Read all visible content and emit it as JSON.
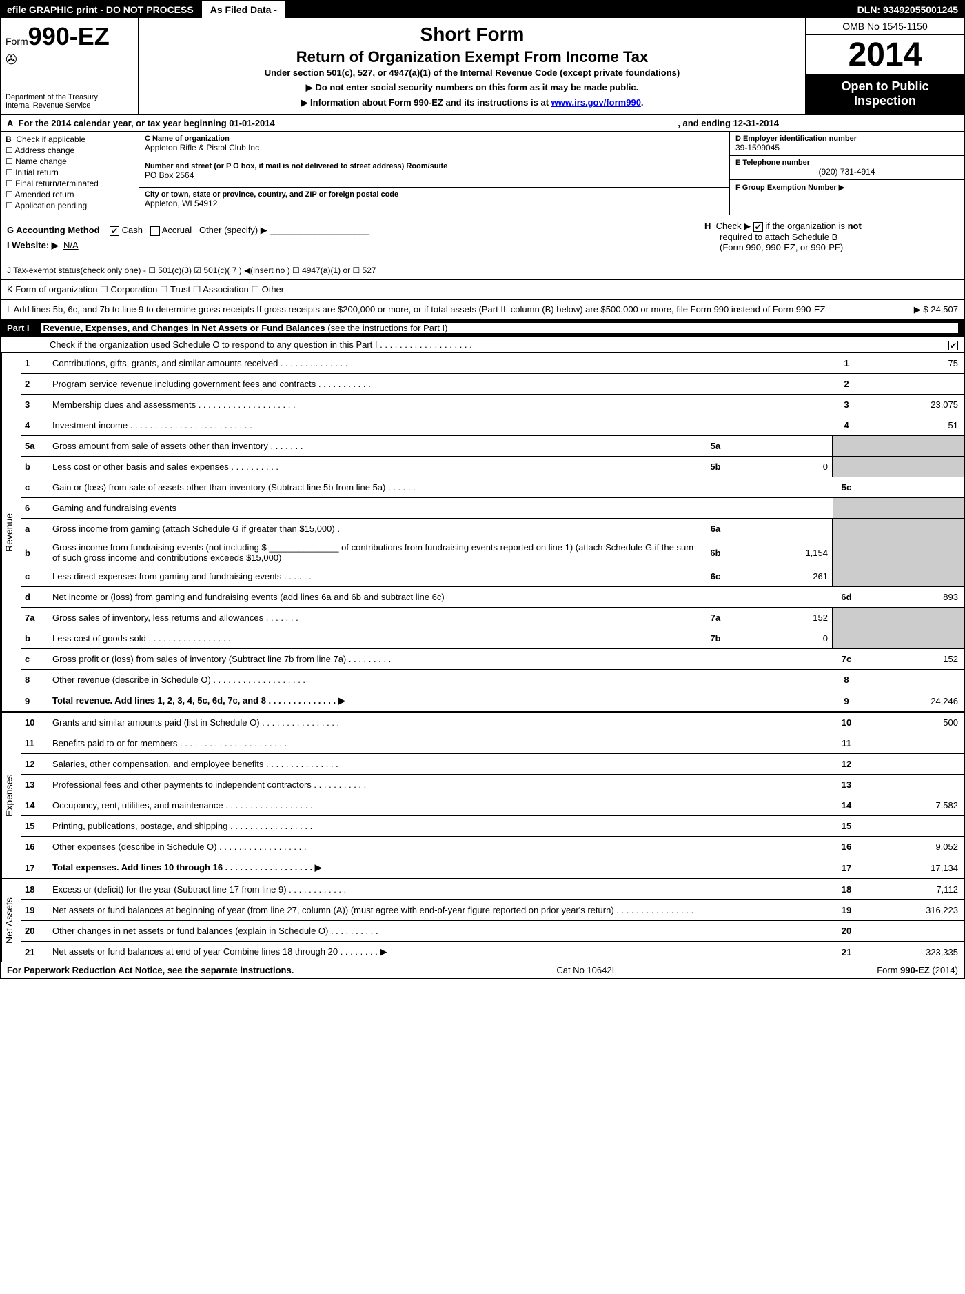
{
  "topbar": {
    "left": "efile GRAPHIC print - DO NOT PROCESS",
    "mid": "As Filed Data -",
    "dln": "DLN: 93492055001245"
  },
  "header": {
    "form_prefix": "Form",
    "form_num": "990-EZ",
    "dept1": "Department of the Treasury",
    "dept2": "Internal Revenue Service",
    "short_form": "Short Form",
    "title": "Return of Organization Exempt From Income Tax",
    "subtitle": "Under section 501(c), 527, or 4947(a)(1) of the Internal Revenue Code (except private foundations)",
    "warn1": "▶ Do not enter social security numbers on this form as it may be made public.",
    "warn2_pre": "▶ Information about Form 990-EZ and its instructions is at ",
    "warn2_link": "www.irs.gov/form990",
    "warn2_post": ".",
    "omb": "OMB No 1545-1150",
    "year": "2014",
    "inspect1": "Open to Public",
    "inspect2": "Inspection"
  },
  "row_a": {
    "label": "A",
    "text": "For the 2014 calendar year, or tax year beginning 01-01-2014",
    "end": ", and ending 12-31-2014"
  },
  "col_b": {
    "label": "B",
    "check": "Check if applicable",
    "items": [
      "Address change",
      "Name change",
      "Initial return",
      "Final return/terminated",
      "Amended return",
      "Application pending"
    ]
  },
  "col_c": {
    "name_lbl": "C Name of organization",
    "name": "Appleton Rifle & Pistol Club Inc",
    "street_lbl": "Number and street (or P O box, if mail is not delivered to street address) Room/suite",
    "street": "PO Box 2564",
    "city_lbl": "City or town, state or province, country, and ZIP or foreign postal code",
    "city": "Appleton, WI  54912"
  },
  "col_def": {
    "d_lbl": "D Employer identification number",
    "d_val": "39-1599045",
    "e_lbl": "E Telephone number",
    "e_val": "(920) 731-4914",
    "f_lbl": "F Group Exemption Number    ▶"
  },
  "gh": {
    "g": "G Accounting Method",
    "g_cash": "Cash",
    "g_accrual": "Accrual",
    "g_other": "Other (specify) ▶",
    "i": "I Website: ▶",
    "i_val": "N/A",
    "h1": "H",
    "h2": "Check ▶",
    "h3": "if the organization is",
    "h3b": "not",
    "h4": "required to attach Schedule B",
    "h5": "(Form 990, 990-EZ, or 990-PF)"
  },
  "row_j": "J Tax-exempt status(check only one) -  ☐ 501(c)(3)  ☑ 501(c)( 7 ) ◀(insert no )  ☐ 4947(a)(1) or  ☐ 527",
  "row_k": "K Form of organization   ☐ Corporation  ☐ Trust  ☐ Association  ☐ Other",
  "row_l": {
    "text": "L Add lines 5b, 6c, and 7b to line 9 to determine gross receipts If gross receipts are $200,000 or more, or if total assets (Part II, column (B) below) are $500,000 or more, file Form 990 instead of Form 990-EZ",
    "amt": "▶ $ 24,507"
  },
  "part1": {
    "num": "Part I",
    "title": "Revenue, Expenses, and Changes in Net Assets or Fund Balances",
    "note": "(see the instructions for Part I)",
    "sched_o": "Check if the organization used Schedule O to respond to any question in this Part I  .  .  .  .  .  .  .  .  .  .  .  .  .  .  .  .  .  .  ."
  },
  "sections": {
    "revenue": "Revenue",
    "expenses": "Expenses",
    "netassets": "Net Assets"
  },
  "lines": {
    "l1": {
      "n": "1",
      "d": "Contributions, gifts, grants, and similar amounts received    .   .   .   .   .   .   .   .   .   .   .   .   .   .",
      "rn": "1",
      "rv": "75"
    },
    "l2": {
      "n": "2",
      "d": "Program service revenue including government fees and contracts    .   .   .   .   .   .   .   .   .   .   .",
      "rn": "2",
      "rv": ""
    },
    "l3": {
      "n": "3",
      "d": "Membership dues and assessments    .   .   .   .   .   .   .   .   .   .   .   .   .   .   .   .   .   .   .   .",
      "rn": "3",
      "rv": "23,075"
    },
    "l4": {
      "n": "4",
      "d": "Investment income    .   .   .   .   .   .   .   .   .   .   .   .   .   .   .   .   .   .   .   .   .   .   .   .   .",
      "rn": "4",
      "rv": "51"
    },
    "l5a": {
      "n": "5a",
      "d": "Gross amount from sale of assets other than inventory    .   .   .   .   .   .   .",
      "sn": "5a",
      "sv": ""
    },
    "l5b": {
      "n": "b",
      "d": "Less  cost or other basis and sales expenses    .   .   .   .   .   .   .   .   .   .",
      "sn": "5b",
      "sv": "0"
    },
    "l5c": {
      "n": "c",
      "d": "Gain or (loss) from sale of assets other than inventory (Subtract line 5b from line 5a)   .   .   .   .   .   .",
      "rn": "5c",
      "rv": ""
    },
    "l6": {
      "n": "6",
      "d": "Gaming and fundraising events"
    },
    "l6a": {
      "n": "a",
      "d": "Gross income from gaming (attach Schedule G if greater than $15,000)    .",
      "sn": "6a",
      "sv": ""
    },
    "l6b": {
      "n": "b",
      "d": "Gross income from fundraising events (not including $ ______________ of contributions from fundraising events reported on line 1) (attach Schedule G if the sum of such gross income and contributions exceeds $15,000)",
      "sn": "6b",
      "sv": "1,154"
    },
    "l6c": {
      "n": "c",
      "d": "Less  direct expenses from gaming and fundraising events   .   .   .   .   .   .",
      "sn": "6c",
      "sv": "261"
    },
    "l6d": {
      "n": "d",
      "d": "Net income or (loss) from gaming and fundraising events (add lines 6a and 6b and subtract line 6c)",
      "rn": "6d",
      "rv": "893"
    },
    "l7a": {
      "n": "7a",
      "d": "Gross sales of inventory, less returns and allowances   .   .   .   .   .   .   .",
      "sn": "7a",
      "sv": "152"
    },
    "l7b": {
      "n": "b",
      "d": "Less  cost of goods sold   .   .   .   .   .   .   .   .   .   .   .   .   .   .   .   .   .",
      "sn": "7b",
      "sv": "0"
    },
    "l7c": {
      "n": "c",
      "d": "Gross profit or (loss) from sales of inventory (Subtract line 7b from line 7a)   .   .   .   .   .   .   .   .   .",
      "rn": "7c",
      "rv": "152"
    },
    "l8": {
      "n": "8",
      "d": "Other revenue (describe in Schedule O)   .   .   .   .   .   .   .   .   .   .   .   .   .   .   .   .   .   .   .",
      "rn": "8",
      "rv": ""
    },
    "l9": {
      "n": "9",
      "d": "Total revenue. Add lines 1, 2, 3, 4, 5c, 6d, 7c, and 8   .   .   .   .   .   .   .   .   .   .   .   .   .   .   ▶",
      "rn": "9",
      "rv": "24,246",
      "bold": true
    },
    "l10": {
      "n": "10",
      "d": "Grants and similar amounts paid (list in Schedule O)   .   .   .   .   .   .   .   .   .   .   .   .   .   .   .   .",
      "rn": "10",
      "rv": "500"
    },
    "l11": {
      "n": "11",
      "d": "Benefits paid to or for members   .   .   .   .   .   .   .   .   .   .   .   .   .   .   .   .   .   .   .   .   .   .",
      "rn": "11",
      "rv": ""
    },
    "l12": {
      "n": "12",
      "d": "Salaries, other compensation, and employee benefits   .   .   .   .   .   .   .   .   .   .   .   .   .   .   .",
      "rn": "12",
      "rv": ""
    },
    "l13": {
      "n": "13",
      "d": "Professional fees and other payments to independent contractors   .   .   .   .   .   .   .   .   .   .   .",
      "rn": "13",
      "rv": ""
    },
    "l14": {
      "n": "14",
      "d": "Occupancy, rent, utilities, and maintenance   .   .   .   .   .   .   .   .   .   .   .   .   .   .   .   .   .   .",
      "rn": "14",
      "rv": "7,582"
    },
    "l15": {
      "n": "15",
      "d": "Printing, publications, postage, and shipping   .   .   .   .   .   .   .   .   .   .   .   .   .   .   .   .   .",
      "rn": "15",
      "rv": ""
    },
    "l16": {
      "n": "16",
      "d": "Other expenses (describe in Schedule O)   .   .   .   .   .   .   .   .   .   .   .   .   .   .   .   .   .   .",
      "rn": "16",
      "rv": "9,052"
    },
    "l17": {
      "n": "17",
      "d": "Total expenses. Add lines 10 through 16   .   .   .   .   .   .   .   .   .   .   .   .   .   .   .   .   .   .   ▶",
      "rn": "17",
      "rv": "17,134",
      "bold": true
    },
    "l18": {
      "n": "18",
      "d": "Excess or (deficit) for the year (Subtract line 17 from line 9)   .   .   .   .   .   .   .   .   .   .   .   .",
      "rn": "18",
      "rv": "7,112"
    },
    "l19": {
      "n": "19",
      "d": "Net assets or fund balances at beginning of year (from line 27, column (A)) (must agree with end-of-year figure reported on prior year's return)   .   .   .   .   .   .   .   .   .   .   .   .   .   .   .   .",
      "rn": "19",
      "rv": "316,223"
    },
    "l20": {
      "n": "20",
      "d": "Other changes in net assets or fund balances (explain in Schedule O)   .   .   .   .   .   .   .   .   .   .",
      "rn": "20",
      "rv": ""
    },
    "l21": {
      "n": "21",
      "d": "Net assets or fund balances at end of year Combine lines 18 through 20   .   .   .   .   .   .   .   . ▶",
      "rn": "21",
      "rv": "323,335"
    }
  },
  "footer": {
    "left": "For Paperwork Reduction Act Notice, see the separate instructions.",
    "mid": "Cat No 10642I",
    "right_pre": "Form ",
    "right_b": "990-EZ",
    "right_post": " (2014)"
  }
}
